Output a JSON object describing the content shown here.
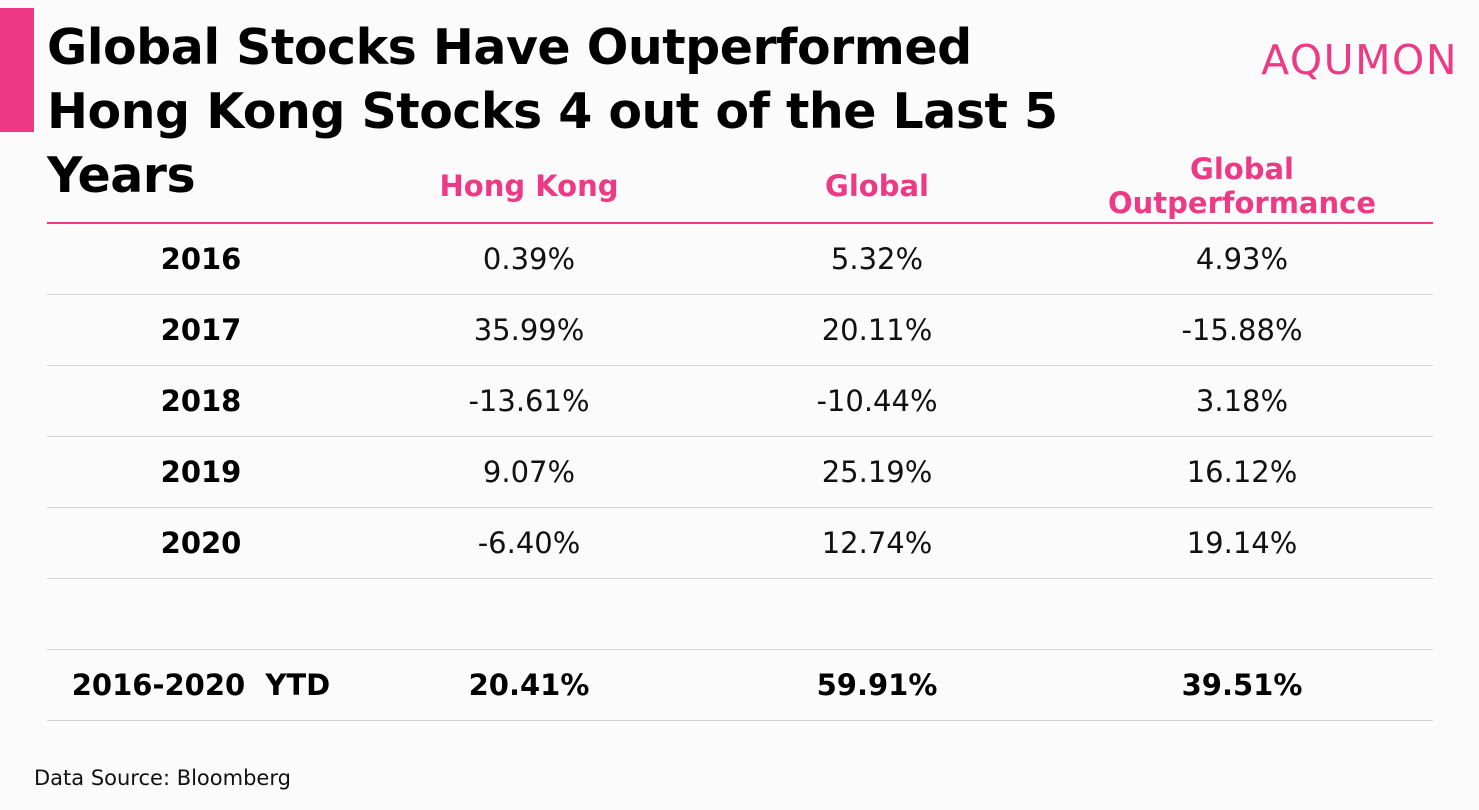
{
  "title": "Global Stocks Have Outperformed Hong Kong Stocks 4 out of the Last 5 Years",
  "brand": "AQUMON",
  "source": "Data Source: Bloomberg",
  "colors": {
    "accent": "#ee3a85",
    "text": "#000000",
    "rule": "#d3d3d3"
  },
  "chart_data": {
    "type": "table",
    "title": "Global Stocks Have Outperformed Hong Kong Stocks 4 out of the Last 5 Years",
    "columns": [
      "",
      "Hong Kong",
      "Global",
      "Global Outperformance"
    ],
    "rows": [
      {
        "label": "2016",
        "hong_kong": "0.39%",
        "global": "5.32%",
        "outperformance": "4.93%"
      },
      {
        "label": "2017",
        "hong_kong": "35.99%",
        "global": "20.11%",
        "outperformance": "-15.88%"
      },
      {
        "label": "2018",
        "hong_kong": "-13.61%",
        "global": "-10.44%",
        "outperformance": "3.18%"
      },
      {
        "label": "2019",
        "hong_kong": "9.07%",
        "global": "25.19%",
        "outperformance": "16.12%"
      },
      {
        "label": "2020",
        "hong_kong": "-6.40%",
        "global": "12.74%",
        "outperformance": "19.14%"
      }
    ],
    "total": {
      "label": "2016-2020  YTD",
      "hong_kong": "20.41%",
      "global": "59.91%",
      "outperformance": "39.51%"
    }
  }
}
